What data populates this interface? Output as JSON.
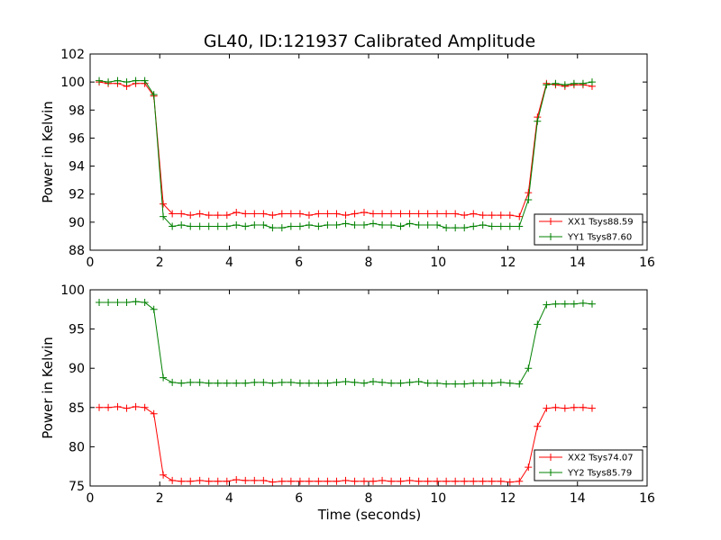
{
  "title": "GL40, ID:121937 Calibrated Amplitude",
  "colors": {
    "red": "#ff0000",
    "green": "#008000"
  },
  "chart_data": [
    {
      "type": "line",
      "xlabel": "",
      "ylabel": "Power in Kelvin",
      "xlim": [
        0,
        16
      ],
      "ylim": [
        88,
        102
      ],
      "xticks": [
        0,
        2,
        4,
        6,
        8,
        10,
        12,
        14,
        16
      ],
      "yticks": [
        88,
        90,
        92,
        94,
        96,
        98,
        100,
        102
      ],
      "grid": false,
      "legend_position": "lower-right",
      "x": [
        0.26,
        0.52,
        0.79,
        1.05,
        1.31,
        1.57,
        1.83,
        2.1,
        2.36,
        2.62,
        2.88,
        3.15,
        3.41,
        3.67,
        3.93,
        4.2,
        4.46,
        4.72,
        4.98,
        5.24,
        5.51,
        5.77,
        6.03,
        6.29,
        6.56,
        6.82,
        7.08,
        7.34,
        7.6,
        7.87,
        8.13,
        8.39,
        8.65,
        8.92,
        9.18,
        9.44,
        9.7,
        9.97,
        10.23,
        10.49,
        10.75,
        11.01,
        11.28,
        11.54,
        11.8,
        12.06,
        12.33,
        12.59,
        12.85,
        13.11,
        13.37,
        13.64,
        13.9,
        14.16,
        14.42
      ],
      "series": [
        {
          "name": "XX1 Tsys88.59",
          "color": "#ff0000",
          "values": [
            100.0,
            99.9,
            99.9,
            99.7,
            99.9,
            99.9,
            99.0,
            91.3,
            90.6,
            90.6,
            90.5,
            90.6,
            90.5,
            90.5,
            90.5,
            90.7,
            90.6,
            90.6,
            90.6,
            90.5,
            90.6,
            90.6,
            90.6,
            90.5,
            90.6,
            90.6,
            90.6,
            90.5,
            90.6,
            90.7,
            90.6,
            90.6,
            90.6,
            90.6,
            90.6,
            90.6,
            90.6,
            90.6,
            90.6,
            90.6,
            90.5,
            90.6,
            90.5,
            90.5,
            90.5,
            90.5,
            90.4,
            92.1,
            97.5,
            99.9,
            99.8,
            99.7,
            99.8,
            99.8,
            99.7
          ]
        },
        {
          "name": "YY1 Tsys87.60",
          "color": "#008000",
          "values": [
            100.1,
            100.0,
            100.1,
            100.0,
            100.1,
            100.1,
            99.1,
            90.4,
            89.7,
            89.8,
            89.7,
            89.7,
            89.7,
            89.7,
            89.7,
            89.8,
            89.7,
            89.8,
            89.8,
            89.6,
            89.6,
            89.7,
            89.7,
            89.8,
            89.7,
            89.8,
            89.8,
            89.9,
            89.8,
            89.8,
            89.9,
            89.8,
            89.8,
            89.7,
            89.9,
            89.8,
            89.8,
            89.8,
            89.6,
            89.6,
            89.6,
            89.7,
            89.8,
            89.7,
            89.7,
            89.7,
            89.7,
            91.6,
            97.2,
            99.8,
            99.9,
            99.8,
            99.9,
            99.9,
            100.0
          ]
        }
      ]
    },
    {
      "type": "line",
      "xlabel": "Time (seconds)",
      "ylabel": "Power in Kelvin",
      "xlim": [
        0,
        16
      ],
      "ylim": [
        75,
        100
      ],
      "xticks": [
        0,
        2,
        4,
        6,
        8,
        10,
        12,
        14,
        16
      ],
      "yticks": [
        75,
        80,
        85,
        90,
        95,
        100
      ],
      "grid": false,
      "legend_position": "lower-right",
      "x": [
        0.26,
        0.52,
        0.79,
        1.05,
        1.31,
        1.57,
        1.83,
        2.1,
        2.36,
        2.62,
        2.88,
        3.15,
        3.41,
        3.67,
        3.93,
        4.2,
        4.46,
        4.72,
        4.98,
        5.24,
        5.51,
        5.77,
        6.03,
        6.29,
        6.56,
        6.82,
        7.08,
        7.34,
        7.6,
        7.87,
        8.13,
        8.39,
        8.65,
        8.92,
        9.18,
        9.44,
        9.7,
        9.97,
        10.23,
        10.49,
        10.75,
        11.01,
        11.28,
        11.54,
        11.8,
        12.06,
        12.33,
        12.59,
        12.85,
        13.11,
        13.37,
        13.64,
        13.9,
        14.16,
        14.42
      ],
      "series": [
        {
          "name": "XX2 Tsys74.07",
          "color": "#ff0000",
          "values": [
            85.0,
            85.0,
            85.1,
            84.9,
            85.1,
            85.0,
            84.2,
            76.4,
            75.7,
            75.6,
            75.6,
            75.7,
            75.6,
            75.6,
            75.6,
            75.8,
            75.7,
            75.7,
            75.7,
            75.5,
            75.6,
            75.6,
            75.6,
            75.6,
            75.6,
            75.6,
            75.6,
            75.7,
            75.6,
            75.6,
            75.6,
            75.7,
            75.6,
            75.6,
            75.7,
            75.6,
            75.6,
            75.6,
            75.6,
            75.6,
            75.6,
            75.6,
            75.6,
            75.6,
            75.6,
            75.5,
            75.6,
            77.4,
            82.6,
            84.9,
            85.0,
            84.9,
            85.0,
            85.0,
            84.9
          ]
        },
        {
          "name": "YY2 Tsys85.79",
          "color": "#008000",
          "values": [
            98.4,
            98.4,
            98.4,
            98.4,
            98.5,
            98.4,
            97.5,
            88.8,
            88.2,
            88.1,
            88.2,
            88.2,
            88.1,
            88.1,
            88.1,
            88.1,
            88.1,
            88.2,
            88.2,
            88.1,
            88.2,
            88.2,
            88.1,
            88.1,
            88.1,
            88.1,
            88.2,
            88.3,
            88.2,
            88.1,
            88.3,
            88.2,
            88.1,
            88.1,
            88.2,
            88.3,
            88.1,
            88.1,
            88.0,
            88.0,
            88.0,
            88.1,
            88.1,
            88.1,
            88.2,
            88.1,
            88.0,
            90.0,
            95.6,
            98.1,
            98.2,
            98.2,
            98.2,
            98.3,
            98.2
          ]
        }
      ]
    }
  ]
}
